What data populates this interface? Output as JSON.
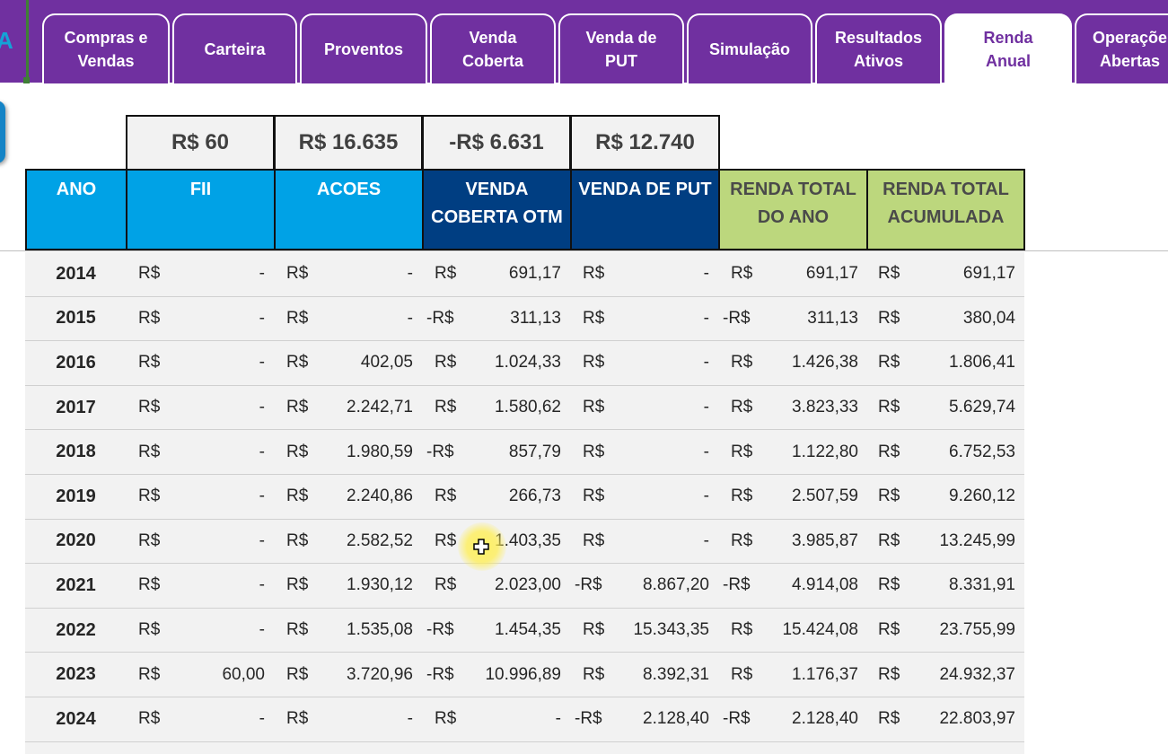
{
  "logo": {
    "letter": "A"
  },
  "tabs": [
    {
      "label": "Compras e\nVendas",
      "active": false
    },
    {
      "label": "Carteira",
      "active": false
    },
    {
      "label": "Proventos",
      "active": false
    },
    {
      "label": "Venda\nCoberta",
      "active": false
    },
    {
      "label": "Venda de\nPUT",
      "active": false
    },
    {
      "label": "Simulação",
      "active": false
    },
    {
      "label": "Resultados\nAtivos",
      "active": false
    },
    {
      "label": "Renda\nAnual",
      "active": true
    },
    {
      "label": "Operaçõe\nAbertas",
      "active": false
    }
  ],
  "totals": {
    "fii": "R$ 60",
    "acoes": "R$ 16.635",
    "venda_coberta": "-R$ 6.631",
    "venda_put": "R$ 12.740"
  },
  "headers": {
    "ano": "ANO",
    "fii": "FII",
    "acoes": "ACOES",
    "venda_coberta": "VENDA\nCOBERTA OTM",
    "venda_put": "VENDA DE PUT",
    "renda_total_ano": "RENDA TOTAL\nDO ANO",
    "renda_total_acumulada": "RENDA TOTAL\nACUMULADA"
  },
  "rows": [
    {
      "ano": "2014",
      "fii": [
        "R$",
        "-"
      ],
      "acoes": [
        "R$",
        "-"
      ],
      "vc": [
        "R$",
        "691,17"
      ],
      "put": [
        "R$",
        "-"
      ],
      "rta": [
        "R$",
        "691,17"
      ],
      "rtac": [
        "R$",
        "691,17"
      ]
    },
    {
      "ano": "2015",
      "fii": [
        "R$",
        "-"
      ],
      "acoes": [
        "R$",
        "-"
      ],
      "vc": [
        "-R$",
        "311,13"
      ],
      "put": [
        "R$",
        "-"
      ],
      "rta": [
        "-R$",
        "311,13"
      ],
      "rtac": [
        "R$",
        "380,04"
      ]
    },
    {
      "ano": "2016",
      "fii": [
        "R$",
        "-"
      ],
      "acoes": [
        "R$",
        "402,05"
      ],
      "vc": [
        "R$",
        "1.024,33"
      ],
      "put": [
        "R$",
        "-"
      ],
      "rta": [
        "R$",
        "1.426,38"
      ],
      "rtac": [
        "R$",
        "1.806,41"
      ]
    },
    {
      "ano": "2017",
      "fii": [
        "R$",
        "-"
      ],
      "acoes": [
        "R$",
        "2.242,71"
      ],
      "vc": [
        "R$",
        "1.580,62"
      ],
      "put": [
        "R$",
        "-"
      ],
      "rta": [
        "R$",
        "3.823,33"
      ],
      "rtac": [
        "R$",
        "5.629,74"
      ]
    },
    {
      "ano": "2018",
      "fii": [
        "R$",
        "-"
      ],
      "acoes": [
        "R$",
        "1.980,59"
      ],
      "vc": [
        "-R$",
        "857,79"
      ],
      "put": [
        "R$",
        "-"
      ],
      "rta": [
        "R$",
        "1.122,80"
      ],
      "rtac": [
        "R$",
        "6.752,53"
      ]
    },
    {
      "ano": "2019",
      "fii": [
        "R$",
        "-"
      ],
      "acoes": [
        "R$",
        "2.240,86"
      ],
      "vc": [
        "R$",
        "266,73"
      ],
      "put": [
        "R$",
        "-"
      ],
      "rta": [
        "R$",
        "2.507,59"
      ],
      "rtac": [
        "R$",
        "9.260,12"
      ]
    },
    {
      "ano": "2020",
      "fii": [
        "R$",
        "-"
      ],
      "acoes": [
        "R$",
        "2.582,52"
      ],
      "vc": [
        "R$",
        "1.403,35"
      ],
      "put": [
        "R$",
        "-"
      ],
      "rta": [
        "R$",
        "3.985,87"
      ],
      "rtac": [
        "R$",
        "13.245,99"
      ]
    },
    {
      "ano": "2021",
      "fii": [
        "R$",
        "-"
      ],
      "acoes": [
        "R$",
        "1.930,12"
      ],
      "vc": [
        "R$",
        "2.023,00"
      ],
      "put": [
        "-R$",
        "8.867,20"
      ],
      "rta": [
        "-R$",
        "4.914,08"
      ],
      "rtac": [
        "R$",
        "8.331,91"
      ]
    },
    {
      "ano": "2022",
      "fii": [
        "R$",
        "-"
      ],
      "acoes": [
        "R$",
        "1.535,08"
      ],
      "vc": [
        "-R$",
        "1.454,35"
      ],
      "put": [
        "R$",
        "15.343,35"
      ],
      "rta": [
        "R$",
        "15.424,08"
      ],
      "rtac": [
        "R$",
        "23.755,99"
      ]
    },
    {
      "ano": "2023",
      "fii": [
        "R$",
        "60,00"
      ],
      "acoes": [
        "R$",
        "3.720,96"
      ],
      "vc": [
        "-R$",
        "10.996,89"
      ],
      "put": [
        "R$",
        "8.392,31"
      ],
      "rta": [
        "R$",
        "1.176,37"
      ],
      "rtac": [
        "R$",
        "24.932,37"
      ]
    },
    {
      "ano": "2024",
      "fii": [
        "R$",
        "-"
      ],
      "acoes": [
        "R$",
        "-"
      ],
      "vc": [
        "R$",
        "-"
      ],
      "put": [
        "-R$",
        "2.128,40"
      ],
      "rta": [
        "-R$",
        "2.128,40"
      ],
      "rtac": [
        "R$",
        "22.803,97"
      ]
    }
  ]
}
